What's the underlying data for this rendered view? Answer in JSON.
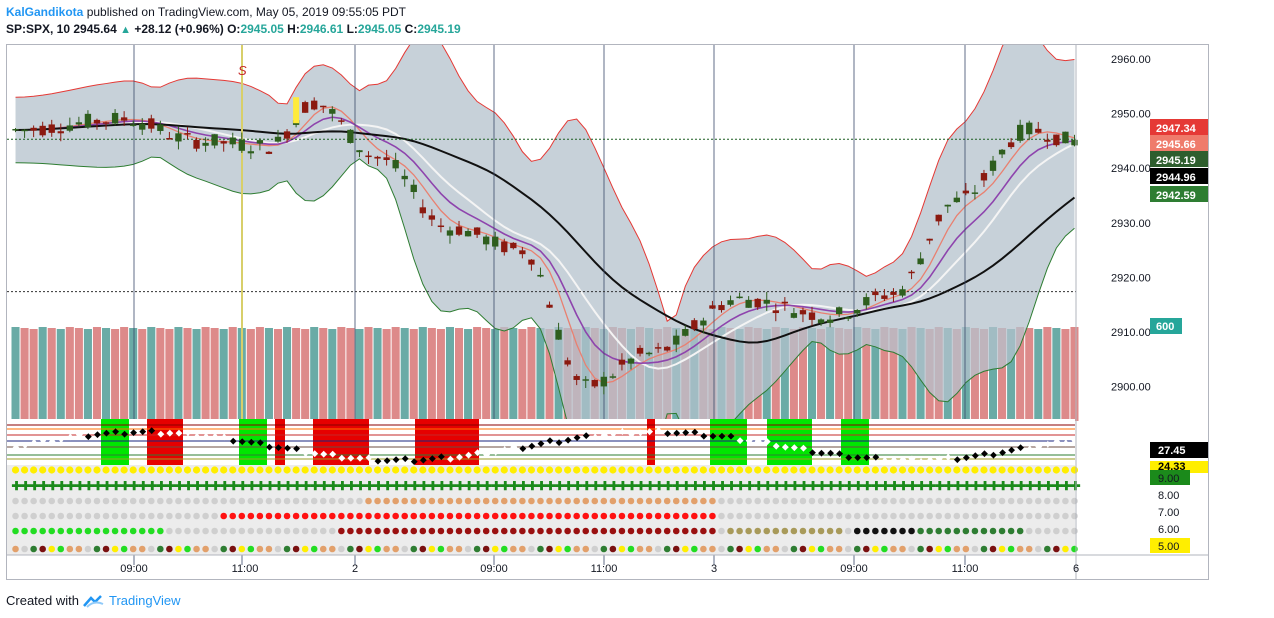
{
  "header": {
    "author": "KalGandikota",
    "published": "published on TradingView.com, May 05, 2019 09:55:05 PDT",
    "symbol": "SP:SPX, 10",
    "last": "2945.64",
    "change": "+28.12 (+0.96%)",
    "o_label": "O:",
    "o_value": "2945.05",
    "h_label": "H:",
    "h_value": "2946.61",
    "l_label": "L:",
    "l_value": "2945.05",
    "c_label": "C:",
    "c_value": "2945.19"
  },
  "signal_marker": "S",
  "price_axis": [
    "2960.00",
    "2950.00",
    "2940.00",
    "2930.00",
    "2920.00",
    "2910.00",
    "2900.00"
  ],
  "price_badges": [
    {
      "text": "2947.34",
      "bg": "#e53935",
      "fg": "#ffffff"
    },
    {
      "text": "2945.66",
      "bg": "#ef7b6b",
      "fg": "#ffffff"
    },
    {
      "text": "2945.19",
      "bg": "#2e5e2e",
      "fg": "#ffffff"
    },
    {
      "text": "2944.96",
      "bg": "#000000",
      "fg": "#ffffff"
    },
    {
      "text": "2942.59",
      "bg": "#2e7d32",
      "fg": "#ffffff"
    }
  ],
  "volume_badge": "600",
  "osc_badge": "27.45",
  "osc_badge_small": "24.33",
  "dot_axis": [
    "9.00",
    "8.00",
    "7.00",
    "6.00",
    "5.00"
  ],
  "time_axis": [
    "09:00",
    "11:00",
    "2",
    "09:00",
    "11:00",
    "3",
    "09:00",
    "11:00",
    "6"
  ],
  "footer": {
    "created_with": "Created with",
    "brand": "TradingView"
  },
  "colors": {
    "up": "#2e5e1e",
    "down": "#8b1a10",
    "band_fill": "#b4c2cc",
    "vol_up": "#6aaba6",
    "vol_down": "#dd8a8a"
  }
}
